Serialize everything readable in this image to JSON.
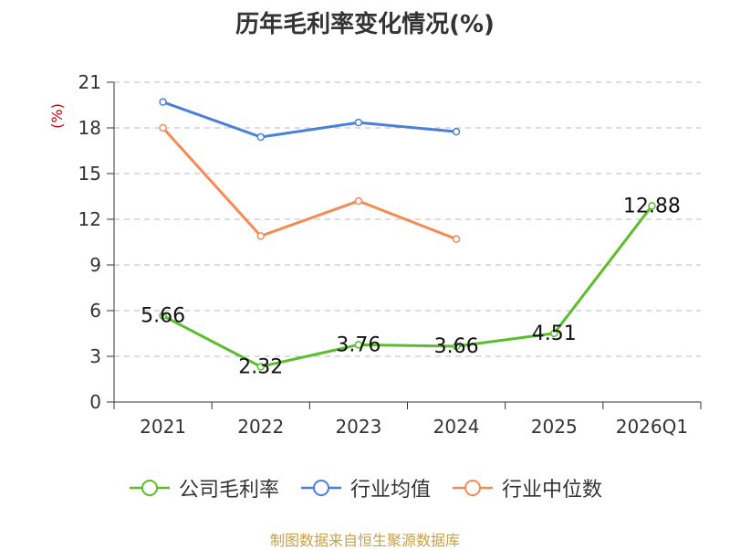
{
  "chart_data": {
    "type": "line",
    "title": "历年毛利率变化情况(%)",
    "ylabel": "(%)",
    "categories": [
      "2021",
      "2022",
      "2023",
      "2024",
      "2025",
      "2026Q1"
    ],
    "ylim": [
      0,
      21
    ],
    "yticks": [
      0,
      3,
      6,
      9,
      12,
      15,
      18,
      21
    ],
    "grid": "horizontal dashed",
    "legend_position": "bottom",
    "series": [
      {
        "name": "公司毛利率",
        "color": "#5bbd2b",
        "values": [
          5.66,
          2.32,
          3.76,
          3.66,
          4.51,
          12.88
        ],
        "labels": [
          "5.66",
          "2.32",
          "3.76",
          "3.66",
          "4.51",
          "12.88"
        ]
      },
      {
        "name": "行业均值",
        "color": "#4a7fdc",
        "values": [
          19.7,
          17.4,
          18.35,
          17.75,
          null,
          null
        ]
      },
      {
        "name": "行业中位数",
        "color": "#f58a55",
        "values": [
          18.0,
          10.9,
          13.2,
          10.7,
          null,
          null
        ]
      }
    ]
  },
  "source": {
    "text": "制图数据来自恒生聚源数据库",
    "color": "#c8a04a"
  },
  "colors": {
    "axis": "#333333",
    "grid": "#bbbbbb",
    "ylabel": "#cc0000"
  }
}
